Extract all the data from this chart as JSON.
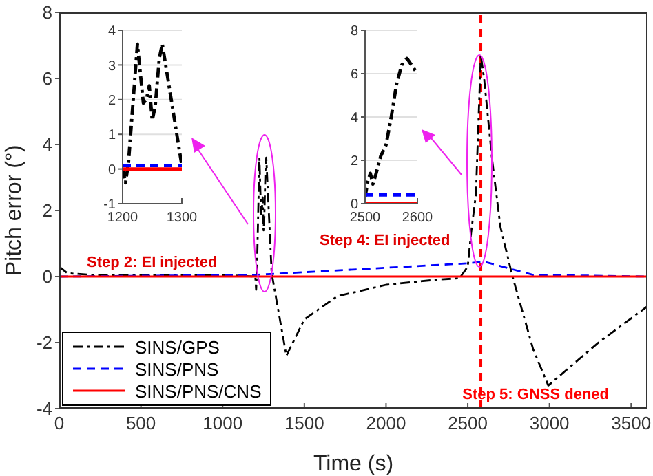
{
  "chart_data": [
    {
      "type": "line",
      "xlabel": "Time (s)",
      "ylabel": "Pitch error (°)",
      "xlim": [
        0,
        3600
      ],
      "xticks": [
        0,
        500,
        1000,
        1500,
        2000,
        2500,
        3000,
        3500
      ],
      "ylim": [
        -4,
        8
      ],
      "yticks": [
        -4,
        -2,
        0,
        2,
        4,
        6,
        8
      ],
      "legend": "bottom left",
      "series": [
        {
          "name": "SINS/GPS",
          "color": "#000000",
          "line_style": "dashdot",
          "x": [
            0,
            50,
            200,
            600,
            1000,
            1200,
            1205,
            1210,
            1225,
            1235,
            1240,
            1245,
            1250,
            1255,
            1262,
            1267,
            1300,
            1390,
            1500,
            1700,
            2000,
            2300,
            2450,
            2500,
            2520,
            2550,
            2580,
            2600,
            2650,
            2700,
            2774,
            2900,
            2993,
            3300,
            3600
          ],
          "values": [
            0.3,
            0.1,
            0.05,
            0.05,
            0.05,
            0,
            -0.4,
            0.2,
            3.6,
            1.9,
            2,
            2.4,
            1.4,
            1.8,
            3.2,
            3.6,
            0.1,
            -2.4,
            -1.3,
            -0.6,
            -0.25,
            -0.1,
            -0.05,
            0.3,
            1.3,
            2.5,
            6.7,
            6,
            3.5,
            1.5,
            0,
            -2.2,
            -3.3,
            -2,
            -0.9
          ]
        },
        {
          "name": "SINS/PNS",
          "color": "#0000ff",
          "line_style": "dashed",
          "x": [
            0,
            1200,
            2500,
            2600,
            2750,
            2900,
            3600
          ],
          "values": [
            0,
            0.05,
            0.4,
            0.45,
            0.25,
            0.05,
            0
          ]
        },
        {
          "name": "SINS/PNS/CNS",
          "color": "#ff0000",
          "line_style": "solid",
          "x": [
            0,
            3600
          ],
          "values": [
            0,
            0
          ]
        }
      ],
      "ref_lines": [
        {
          "axis": "x",
          "value": 2580,
          "label": "Step 5: GNSS dened",
          "color": "#ff0000",
          "line_style": "dashed"
        }
      ],
      "annotations": [
        "Step 2: EI injected",
        "Step 4: EI injected"
      ]
    },
    {
      "type": "line",
      "xlim": [
        1200,
        1300
      ],
      "xticks": [
        1200,
        1300
      ],
      "ylim": [
        -1,
        4
      ],
      "yticks": [
        -1,
        0,
        1,
        2,
        3,
        4
      ],
      "grid": "y",
      "series": [
        {
          "color": "#000000",
          "line_style": "dashdot",
          "x": [
            1200,
            1205,
            1210,
            1225,
            1235,
            1240,
            1245,
            1250,
            1255,
            1262,
            1267,
            1300
          ],
          "values": [
            0,
            -0.4,
            0.2,
            3.6,
            1.9,
            2,
            2.4,
            1.4,
            1.8,
            3.2,
            3.6,
            0.1
          ]
        },
        {
          "color": "#0000ff",
          "line_style": "dashed",
          "x": [
            1200,
            1300
          ],
          "values": [
            0.1,
            0.1
          ]
        },
        {
          "color": "#ff0000",
          "line_style": "solid",
          "x": [
            1200,
            1300
          ],
          "values": [
            0,
            0
          ]
        }
      ]
    },
    {
      "type": "line",
      "xlim": [
        2500,
        2600
      ],
      "xticks": [
        2500,
        2600
      ],
      "ylim": [
        0,
        8
      ],
      "yticks": [
        0,
        2,
        4,
        6,
        8
      ],
      "grid": "y",
      "series": [
        {
          "color": "#000000",
          "line_style": "dashdot",
          "x": [
            2500,
            2505,
            2510,
            2515,
            2520,
            2530,
            2540,
            2550,
            2560,
            2570,
            2580,
            2600
          ],
          "values": [
            0.3,
            1,
            1.4,
            0.9,
            1.3,
            2.2,
            2.7,
            4,
            5.5,
            6.4,
            6.7,
            6
          ]
        },
        {
          "color": "#0000ff",
          "line_style": "dashed",
          "x": [
            2500,
            2600
          ],
          "values": [
            0.4,
            0.4
          ]
        },
        {
          "color": "#ff0000",
          "line_style": "solid",
          "x": [
            2500,
            2600
          ],
          "values": [
            0,
            0
          ]
        }
      ]
    }
  ]
}
